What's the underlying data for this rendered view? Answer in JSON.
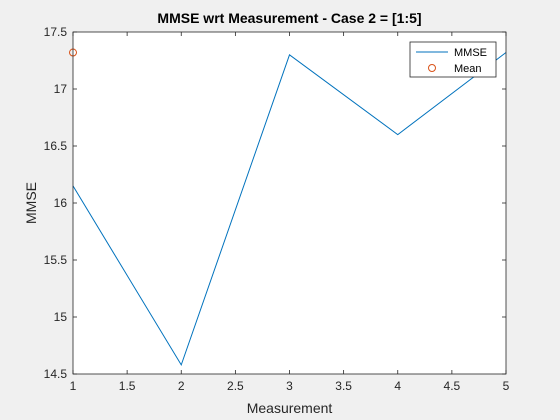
{
  "chart_data": {
    "type": "line",
    "title": "MMSE wrt Measurement - Case 2 = [1:5]",
    "xlabel": "Measurement",
    "ylabel": "MMSE",
    "xlim": [
      1,
      5
    ],
    "ylim": [
      14.5,
      17.5
    ],
    "xticks": [
      1,
      1.5,
      2,
      2.5,
      3,
      3.5,
      4,
      4.5,
      5
    ],
    "xtick_labels": [
      "1",
      "1.5",
      "2",
      "2.5",
      "3",
      "3.5",
      "4",
      "4.5",
      "5"
    ],
    "yticks": [
      14.5,
      15,
      15.5,
      16,
      16.5,
      17,
      17.5
    ],
    "ytick_labels": [
      "14.5",
      "15",
      "15.5",
      "16",
      "16.5",
      "17",
      "17.5"
    ],
    "grid": false,
    "legend_position": "top-right",
    "series": [
      {
        "name": "MMSE",
        "style": "line",
        "color": "#0072BD",
        "x": [
          1,
          2,
          3,
          4,
          5
        ],
        "y": [
          16.15,
          14.58,
          17.3,
          16.6,
          17.32
        ]
      },
      {
        "name": "Mean",
        "style": "marker-circle",
        "color": "#D95319",
        "x": [
          1
        ],
        "y": [
          17.32
        ]
      }
    ]
  }
}
